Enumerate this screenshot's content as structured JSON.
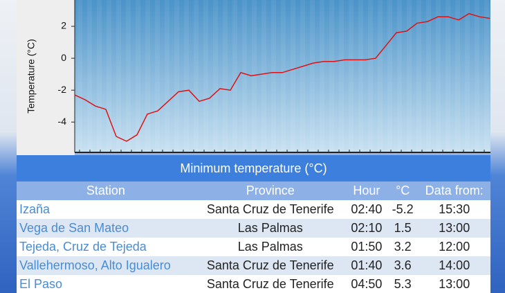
{
  "chart_data": {
    "type": "line",
    "y_label": "Temperature (°C)",
    "values": [
      -2.3,
      -2.6,
      -3.0,
      -3.2,
      -4.9,
      -5.2,
      -4.8,
      -3.5,
      -3.3,
      -2.7,
      -2.1,
      -2.0,
      -2.7,
      -2.5,
      -1.9,
      -2.0,
      -0.9,
      -1.1,
      -1.0,
      -0.9,
      -0.9,
      -0.7,
      -0.5,
      -0.3,
      -0.2,
      -0.2,
      -0.1,
      -0.1,
      -0.1,
      0.0,
      0.8,
      1.6,
      1.7,
      2.2,
      2.3,
      2.6,
      2.6,
      2.4,
      2.8,
      2.6,
      2.5
    ],
    "color": "#e01010",
    "ylim": [
      -5.9,
      3.65
    ],
    "yticks": [
      2,
      0,
      -2,
      -4
    ]
  },
  "table": {
    "title": "Minimum temperature (°C)",
    "columns": [
      "Station",
      "Province",
      "Hour",
      "°C",
      "Data from:"
    ],
    "rows": [
      [
        "Izaña",
        "Santa Cruz de Tenerife",
        "02:40",
        "-5.2",
        "15:30"
      ],
      [
        "Vega de San Mateo",
        "Las Palmas",
        "02:10",
        "1.5",
        "13:00"
      ],
      [
        "Tejeda, Cruz de Tejeda",
        "Las Palmas",
        "01:50",
        "3.2",
        "12:00"
      ],
      [
        "Vallehermoso, Alto Igualero",
        "Santa Cruz de Tenerife",
        "01:40",
        "3.6",
        "14:00"
      ],
      [
        "El Paso",
        "Santa Cruz de Tenerife",
        "04:50",
        "5.3",
        "13:00"
      ]
    ]
  }
}
